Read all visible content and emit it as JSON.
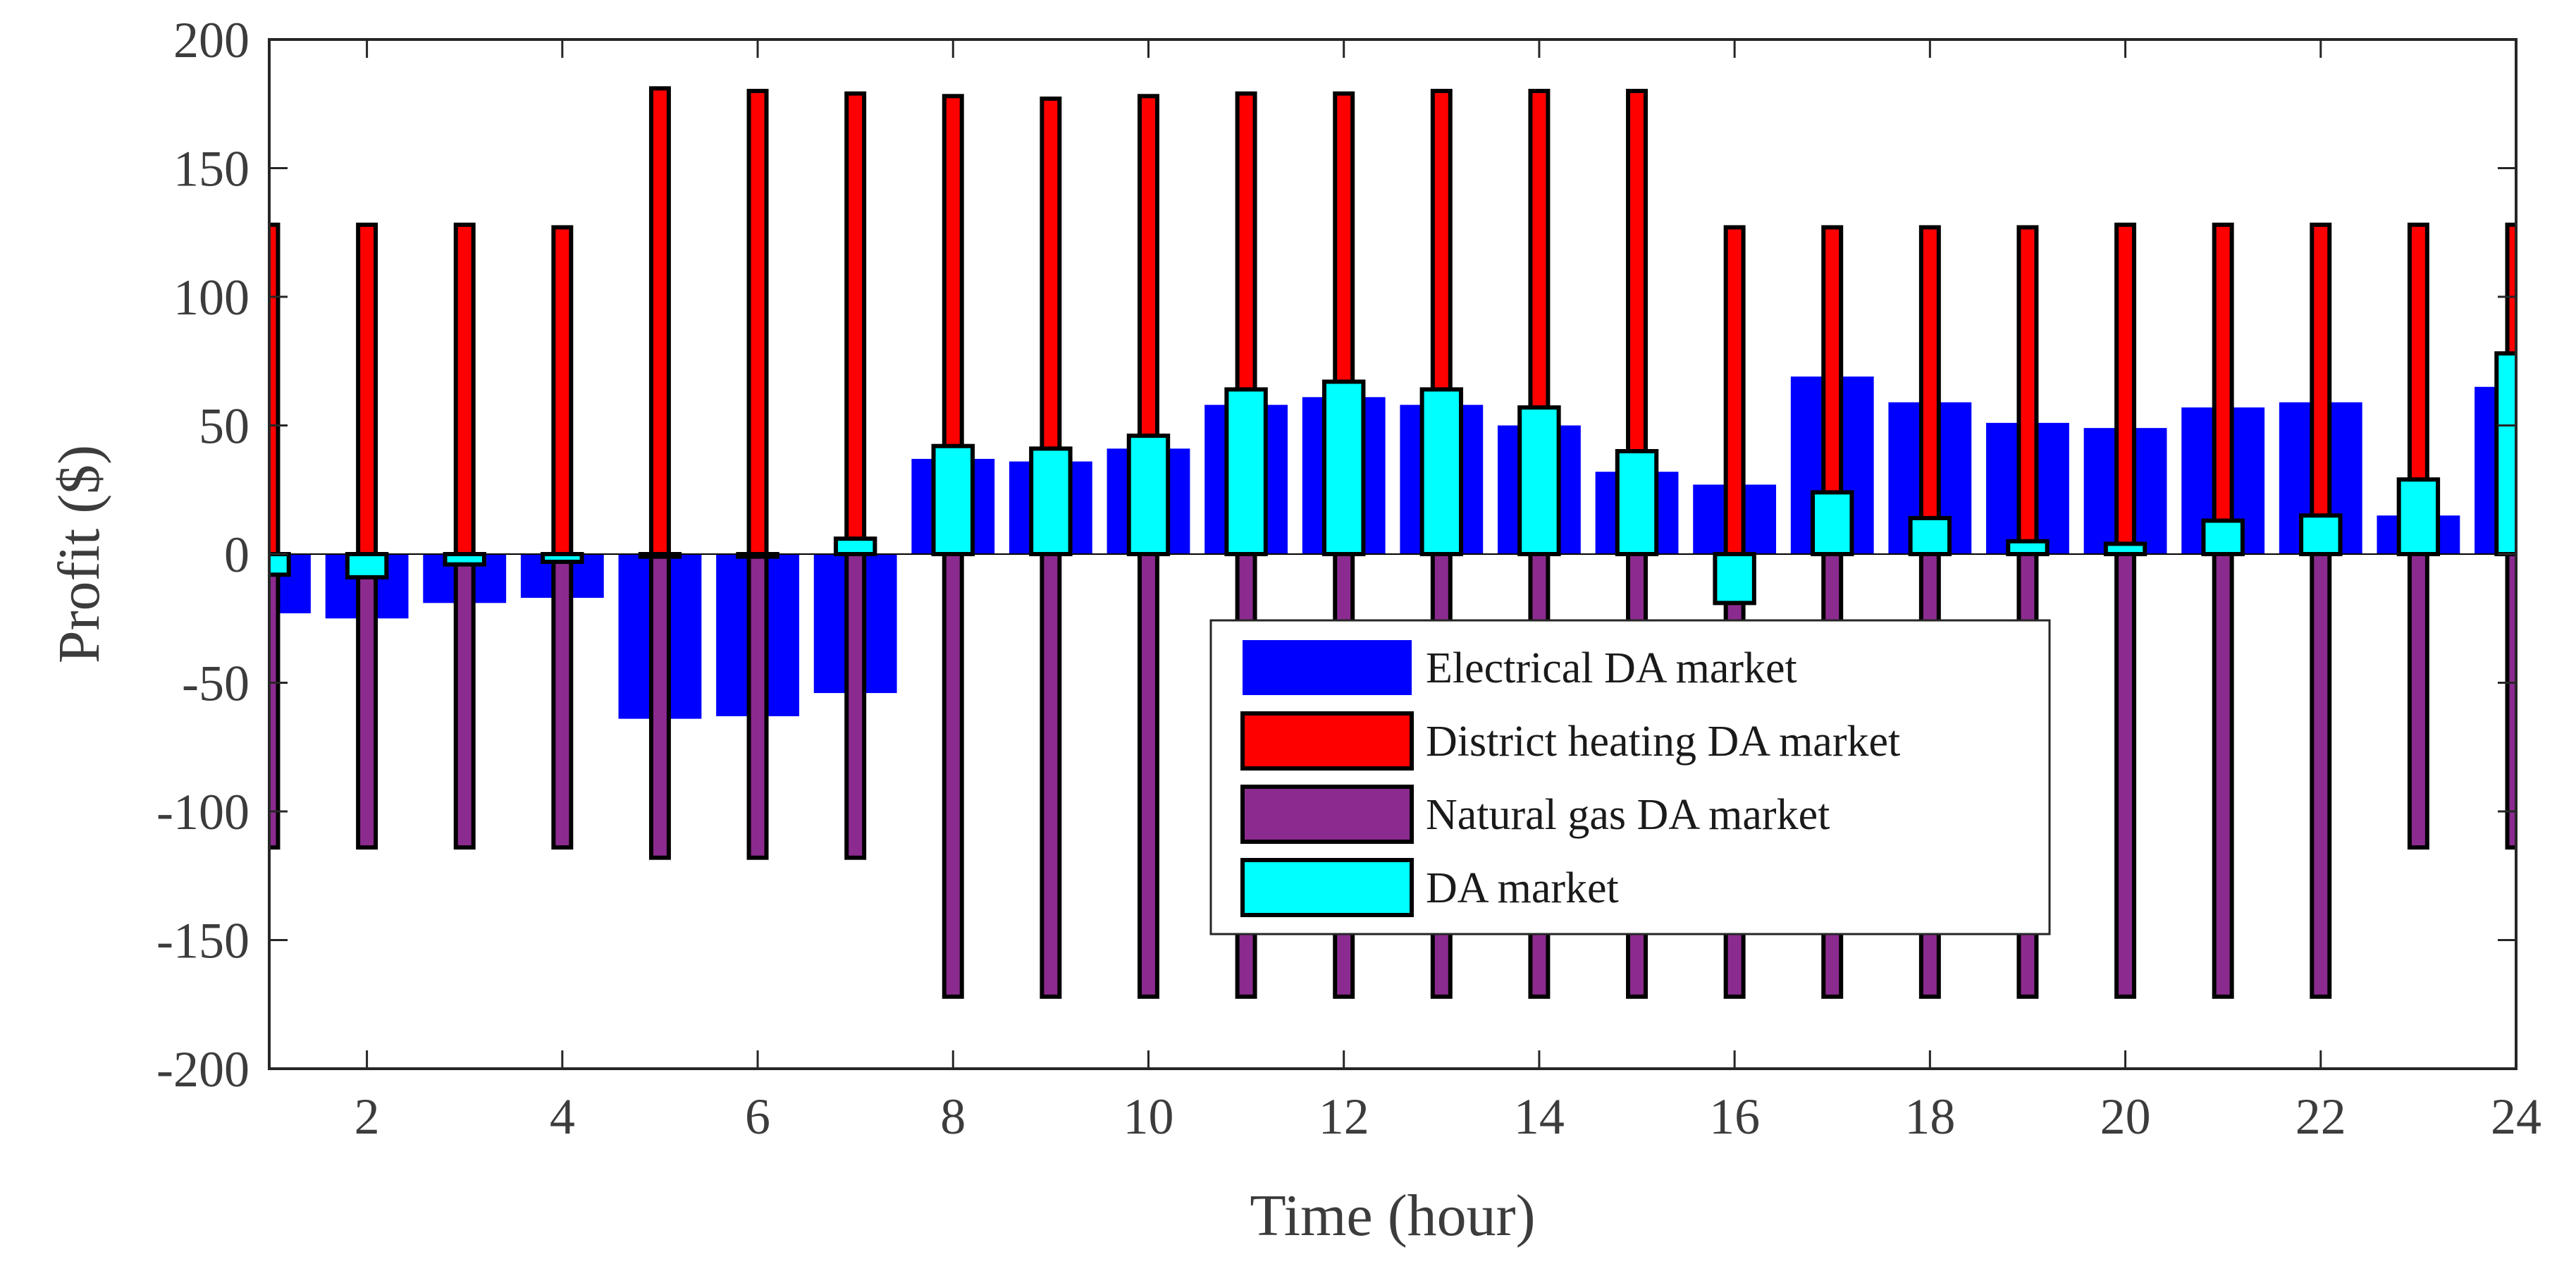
{
  "chart_data": {
    "type": "bar",
    "title": "",
    "xlabel": "Time (hour)",
    "ylabel": "Profit ($)",
    "xlim": [
      1,
      24
    ],
    "ylim": [
      -200,
      200
    ],
    "xticks": [
      2,
      4,
      6,
      8,
      10,
      12,
      14,
      16,
      18,
      20,
      22,
      24
    ],
    "yticks": [
      -200,
      -150,
      -100,
      -50,
      0,
      50,
      100,
      150,
      200
    ],
    "x": [
      1,
      2,
      3,
      4,
      5,
      6,
      7,
      8,
      9,
      10,
      11,
      12,
      13,
      14,
      15,
      16,
      17,
      18,
      19,
      20,
      21,
      22,
      23,
      24
    ],
    "legend_position": "inside-lower-center",
    "series": [
      {
        "name": "Electrical DA market",
        "color": "#0000ff",
        "values": [
          -23,
          -25,
          -19,
          -17,
          -64,
          -63,
          -54,
          37,
          36,
          41,
          58,
          61,
          58,
          50,
          32,
          27,
          69,
          59,
          51,
          49,
          57,
          59,
          15,
          65
        ]
      },
      {
        "name": "District heating DA market",
        "color": "#ff0000",
        "values": [
          128,
          128,
          128,
          127,
          181,
          180,
          179,
          178,
          177,
          178,
          179,
          179,
          180,
          180,
          180,
          127,
          127,
          127,
          127,
          128,
          128,
          128,
          128,
          128
        ]
      },
      {
        "name": "Natural gas DA market",
        "color": "#8b2b8f",
        "values": [
          -114,
          -114,
          -114,
          -114,
          -118,
          -118,
          -118,
          -172,
          -172,
          -172,
          -172,
          -172,
          -172,
          -172,
          -172,
          -172,
          -172,
          -172,
          -172,
          -172,
          -172,
          -172,
          -114,
          -114
        ]
      },
      {
        "name": "DA market",
        "color": "#00ffff",
        "values": [
          -8,
          -9,
          -4,
          -3,
          -1,
          -1,
          6,
          42,
          41,
          46,
          64,
          67,
          64,
          57,
          40,
          -19,
          24,
          14,
          5,
          4,
          13,
          15,
          29,
          78
        ]
      }
    ]
  }
}
